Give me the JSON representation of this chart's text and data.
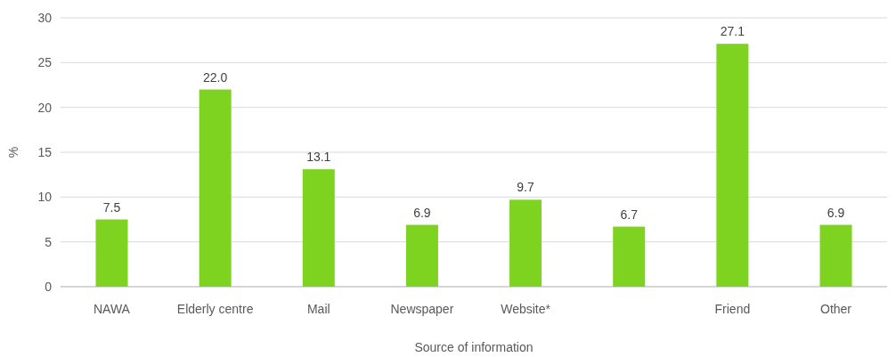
{
  "chart_data": {
    "type": "bar",
    "xlabel": "Source of information",
    "ylabel": "%",
    "categories": [
      "NAWA",
      "Elderly centre",
      "Mail",
      "Newspaper",
      "Website*",
      null,
      "Friend",
      "Other"
    ],
    "values": [
      7.5,
      22.0,
      13.1,
      6.9,
      9.7,
      6.7,
      27.1,
      6.9
    ],
    "value_labels": [
      "7.5",
      "22.0",
      "13.1",
      "6.9",
      "9.7",
      "6.7",
      "27.1",
      "6.9"
    ],
    "color": "#7ed321",
    "ylim": [
      0,
      30
    ],
    "yticks": [
      0,
      5,
      10,
      15,
      20,
      25,
      30
    ],
    "grid": "y"
  }
}
